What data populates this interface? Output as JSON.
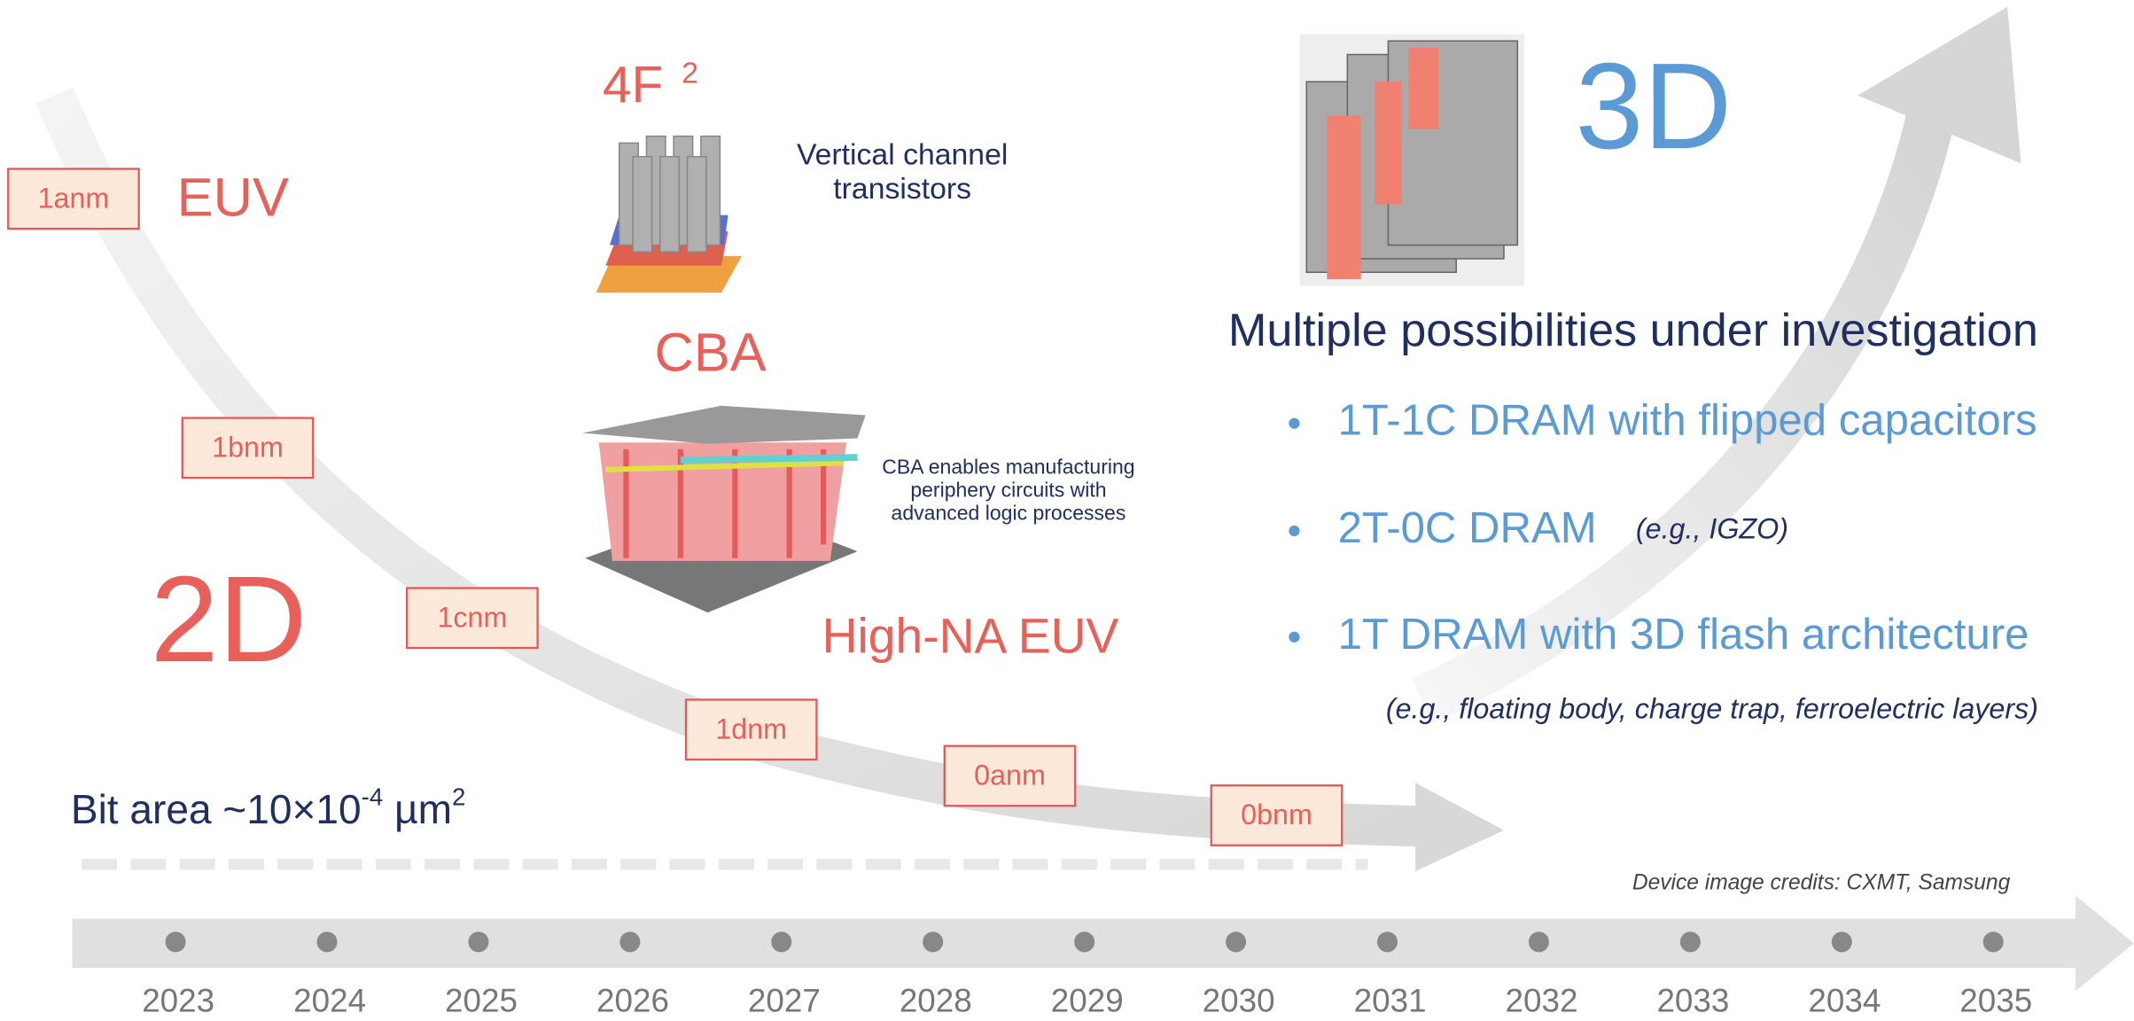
{
  "nodes": [
    {
      "label": "1anm"
    },
    {
      "label": "1bnm"
    },
    {
      "label": "1cnm"
    },
    {
      "label": "1dnm"
    },
    {
      "label": "0anm"
    },
    {
      "label": "0bnm"
    }
  ],
  "labels": {
    "euv": "EUV",
    "two_d": "2D",
    "four_f": "4F",
    "four_f_sup": "2",
    "vertical": [
      "Vertical channel",
      "transistors"
    ],
    "cba": "CBA",
    "cba_note": [
      "CBA enables manufacturing",
      "periphery circuits with",
      "advanced logic processes"
    ],
    "high_na": "High-NA EUV",
    "three_d": "3D",
    "multiple": "Multiple possibilities under investigation"
  },
  "bullets": [
    {
      "text": "1T-1C DRAM with flipped capacitors"
    },
    {
      "text": "2T-0C DRAM",
      "note": "(e.g., IGZO)"
    },
    {
      "text": "1T DRAM with 3D flash architecture"
    }
  ],
  "bullet_note": "(e.g., floating body, charge trap, ferroelectric layers)",
  "bit_area": {
    "main": "Bit area ~10×10",
    "exp": "-4",
    "unit": " µm",
    "unit_exp": "2"
  },
  "credits": "Device image credits: CXMT, Samsung",
  "years": [
    2023,
    2024,
    2025,
    2026,
    2027,
    2028,
    2029,
    2030,
    2031,
    2032,
    2033,
    2034,
    2035
  ]
}
